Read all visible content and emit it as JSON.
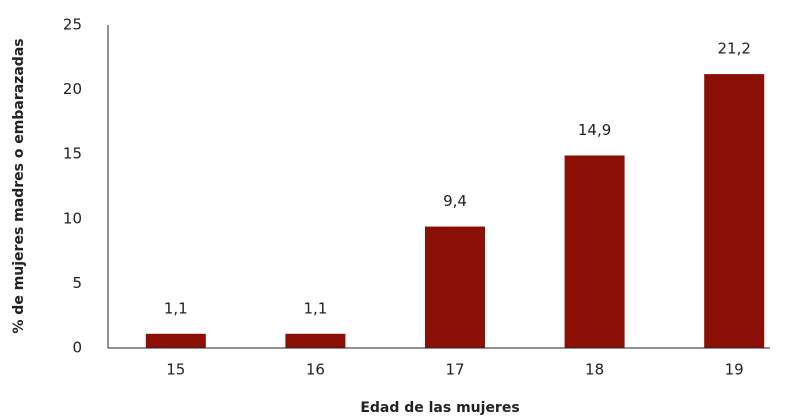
{
  "chart_data": {
    "type": "bar",
    "x_label": "Edad de las mujeres",
    "y_label": "% de mujeres madres o embarazadas",
    "categories": [
      "15",
      "16",
      "17",
      "18",
      "19"
    ],
    "values": [
      1.1,
      1.1,
      9.4,
      14.9,
      21.2
    ],
    "value_labels": [
      "1,1",
      "1,1",
      "9,4",
      "14,9",
      "21,2"
    ],
    "color": "#8b0f05",
    "ylim": [
      0,
      25
    ],
    "yticks": [
      0,
      5,
      10,
      15,
      20,
      25
    ],
    "grid": false
  }
}
